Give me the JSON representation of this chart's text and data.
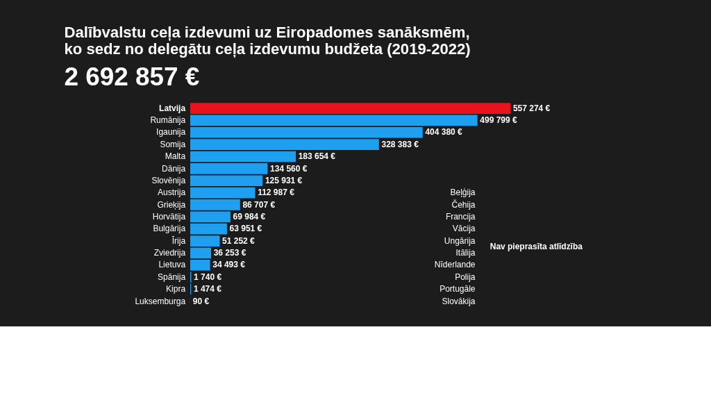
{
  "chart_data": {
    "type": "bar",
    "orientation": "horizontal",
    "title": "Dalībvalstu ceļa izdevumi uz Eiropadomes sanāksmēm,\nko sedz no delegātu ceļa izdevumu budžeta (2019-2022)",
    "subtitle": "2 692 857 €",
    "categories": [
      "Latvija",
      "Rumānija",
      "Igaunija",
      "Somija",
      "Malta",
      "Dānija",
      "Slovēnija",
      "Austrija",
      "Grieķija",
      "Horvātija",
      "Bulgārija",
      "Īrija",
      "Zviedrija",
      "Lietuva",
      "Spānija",
      "Kipra",
      "Luksemburga"
    ],
    "values": [
      557274,
      499799,
      404380,
      328383,
      183654,
      134560,
      125931,
      112987,
      86707,
      69984,
      63951,
      51252,
      36253,
      34493,
      1740,
      1474,
      90
    ],
    "value_labels": [
      "557 274 €",
      "499 799 €",
      "404 380 €",
      "328 383 €",
      "183 654 €",
      "134 560 €",
      "125 931 €",
      "112 987 €",
      "86 707 €",
      "69 984 €",
      "63 951 €",
      "51 252 €",
      "36 253 €",
      "34 493 €",
      "1 740 €",
      "1 474 €",
      "90 €"
    ],
    "colors": [
      "#e8141b",
      "#1e9ff0",
      "#1e9ff0",
      "#1e9ff0",
      "#1e9ff0",
      "#1e9ff0",
      "#1e9ff0",
      "#1e9ff0",
      "#1e9ff0",
      "#1e9ff0",
      "#1e9ff0",
      "#1e9ff0",
      "#1e9ff0",
      "#1e9ff0",
      "#1e9ff0",
      "#1e9ff0",
      "#1e9ff0"
    ],
    "annotations": [
      "Beļģija",
      "Čehija",
      "Francija",
      "Vācija",
      "Ungārija",
      "Itālija",
      "Nīderlande",
      "Polija",
      "Portugāle",
      "Slovākija",
      "Nav pieprasīta atlīdzība"
    ]
  }
}
